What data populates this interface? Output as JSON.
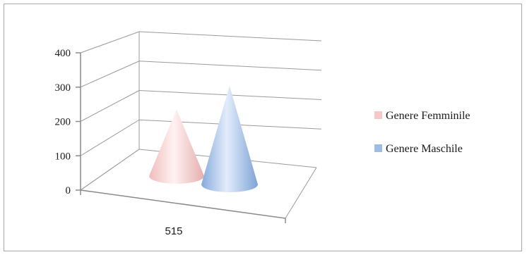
{
  "chart_data": {
    "type": "bar",
    "style": "3d-cone",
    "title": "",
    "xlabel": "",
    "ylabel": "",
    "categories": [
      "515"
    ],
    "ylim": [
      0,
      400
    ],
    "yticks": [
      0,
      100,
      200,
      300,
      400
    ],
    "grid": true,
    "legend_position": "right",
    "series": [
      {
        "name": "Genere Femminile",
        "values": [
          210
        ],
        "color": "#f4c9c8"
      },
      {
        "name": "Genere Maschile",
        "values": [
          325
        ],
        "color": "#9dbde6"
      }
    ]
  }
}
